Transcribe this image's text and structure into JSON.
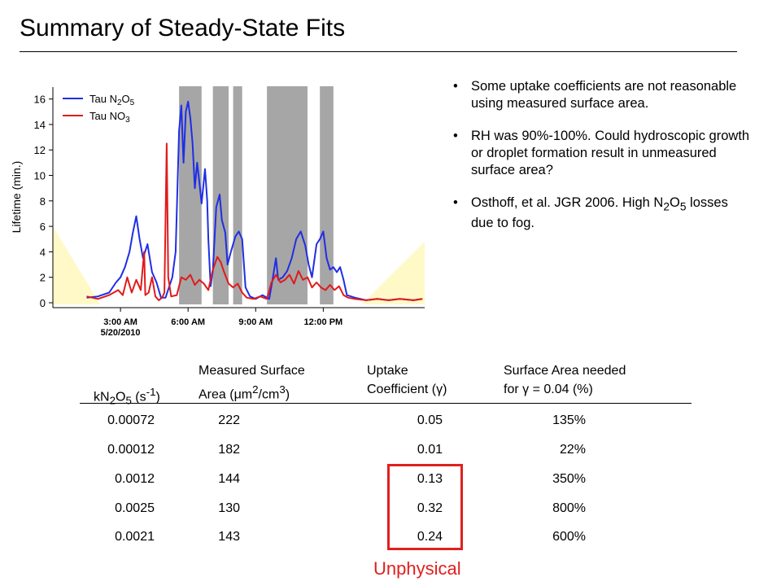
{
  "slide": {
    "title": "Summary of Steady-State Fits"
  },
  "bullets": [
    {
      "text": "Some uptake coefficients are not reasonable using measured surface area."
    },
    {
      "text": "RH was 90%-100%. Could hydroscopic growth or droplet formation result in unmeasured surface area?"
    },
    {
      "pre": "Osthoff, et al. JGR 2006. High N",
      "sub1": "2",
      "mid": "O",
      "sub2": "5",
      "post": " losses due to fog."
    }
  ],
  "chart_data": {
    "type": "line",
    "ylabel": "Lifetime (min.)",
    "ylim": [
      0,
      17
    ],
    "x_range_hours": [
      0,
      16.5
    ],
    "y_ticks": [
      "0",
      "2",
      "4",
      "6",
      "8",
      "10",
      "12",
      "14",
      "16"
    ],
    "x_ticks": [
      {
        "label": "3:00 AM",
        "sublabel": "5/20/2010",
        "hour": 3
      },
      {
        "label": "6:00 AM",
        "sublabel": "",
        "hour": 6
      },
      {
        "label": "9:00 AM",
        "sublabel": "",
        "hour": 9
      },
      {
        "label": "12:00 PM",
        "sublabel": "",
        "hour": 12
      }
    ],
    "shaded_periods_hours": [
      [
        5.6,
        6.6
      ],
      [
        7.1,
        7.8
      ],
      [
        8.0,
        8.4
      ],
      [
        9.5,
        11.3
      ],
      [
        11.85,
        12.45
      ]
    ],
    "daylight_regions": [
      {
        "hours": [
          0,
          2.1
        ],
        "peak": 6,
        "side": "left"
      },
      {
        "hours": [
          13.7,
          16.5
        ],
        "peak": 4.8,
        "side": "right"
      }
    ],
    "series": [
      {
        "name": "Tau N2O5",
        "color": "#1f2ee6",
        "points": [
          [
            1.5,
            0.4
          ],
          [
            2.0,
            0.5
          ],
          [
            2.5,
            0.8
          ],
          [
            2.8,
            1.6
          ],
          [
            3.0,
            2.0
          ],
          [
            3.2,
            2.8
          ],
          [
            3.4,
            4.0
          ],
          [
            3.55,
            5.5
          ],
          [
            3.7,
            6.8
          ],
          [
            3.85,
            5.0
          ],
          [
            4.0,
            3.5
          ],
          [
            4.2,
            4.6
          ],
          [
            4.4,
            2.4
          ],
          [
            4.6,
            1.6
          ],
          [
            4.8,
            0.4
          ],
          [
            5.0,
            0.4
          ],
          [
            5.3,
            2.0
          ],
          [
            5.45,
            4.0
          ],
          [
            5.6,
            13.5
          ],
          [
            5.7,
            15.5
          ],
          [
            5.8,
            11.0
          ],
          [
            5.9,
            15.0
          ],
          [
            6.0,
            15.8
          ],
          [
            6.1,
            14.5
          ],
          [
            6.2,
            12.5
          ],
          [
            6.3,
            9.0
          ],
          [
            6.4,
            11.0
          ],
          [
            6.5,
            9.5
          ],
          [
            6.6,
            7.8
          ],
          [
            6.75,
            10.5
          ],
          [
            6.85,
            8.0
          ],
          [
            6.9,
            5.0
          ],
          [
            7.0,
            1.3
          ],
          [
            7.1,
            2.5
          ],
          [
            7.25,
            7.5
          ],
          [
            7.4,
            8.5
          ],
          [
            7.5,
            6.5
          ],
          [
            7.65,
            5.5
          ],
          [
            7.75,
            3.0
          ],
          [
            7.9,
            4.0
          ],
          [
            8.1,
            5.2
          ],
          [
            8.25,
            5.6
          ],
          [
            8.4,
            5.0
          ],
          [
            8.55,
            1.2
          ],
          [
            8.75,
            0.5
          ],
          [
            9.0,
            0.3
          ],
          [
            9.3,
            0.6
          ],
          [
            9.6,
            0.3
          ],
          [
            9.75,
            1.8
          ],
          [
            9.9,
            3.5
          ],
          [
            10.0,
            1.8
          ],
          [
            10.2,
            2.0
          ],
          [
            10.4,
            2.5
          ],
          [
            10.6,
            3.5
          ],
          [
            10.8,
            5.0
          ],
          [
            11.0,
            5.6
          ],
          [
            11.2,
            4.5
          ],
          [
            11.35,
            3.0
          ],
          [
            11.5,
            2.0
          ],
          [
            11.7,
            4.6
          ],
          [
            11.85,
            5.0
          ],
          [
            12.0,
            5.6
          ],
          [
            12.15,
            3.5
          ],
          [
            12.3,
            2.6
          ],
          [
            12.45,
            2.8
          ],
          [
            12.6,
            2.4
          ],
          [
            12.75,
            2.8
          ],
          [
            12.9,
            1.8
          ],
          [
            13.05,
            0.6
          ],
          [
            13.4,
            0.4
          ],
          [
            13.9,
            0.2
          ],
          [
            14.4,
            0.3
          ],
          [
            14.9,
            0.2
          ],
          [
            15.4,
            0.3
          ],
          [
            16.0,
            0.2
          ],
          [
            16.4,
            0.3
          ]
        ]
      },
      {
        "name": "Tau NO3",
        "color": "#e01b1b",
        "points": [
          [
            1.5,
            0.5
          ],
          [
            2.0,
            0.3
          ],
          [
            2.5,
            0.6
          ],
          [
            2.9,
            1.0
          ],
          [
            3.1,
            0.6
          ],
          [
            3.3,
            2.0
          ],
          [
            3.5,
            0.8
          ],
          [
            3.7,
            1.8
          ],
          [
            3.9,
            1.0
          ],
          [
            4.05,
            4.0
          ],
          [
            4.1,
            0.6
          ],
          [
            4.25,
            0.8
          ],
          [
            4.4,
            2.0
          ],
          [
            4.55,
            0.5
          ],
          [
            4.7,
            0.2
          ],
          [
            4.85,
            0.4
          ],
          [
            4.95,
            0.8
          ],
          [
            5.05,
            12.5
          ],
          [
            5.12,
            2.0
          ],
          [
            5.25,
            0.5
          ],
          [
            5.5,
            0.6
          ],
          [
            5.7,
            2.0
          ],
          [
            5.9,
            1.8
          ],
          [
            6.1,
            2.2
          ],
          [
            6.3,
            1.4
          ],
          [
            6.5,
            1.8
          ],
          [
            6.7,
            1.5
          ],
          [
            6.9,
            1.0
          ],
          [
            7.1,
            2.6
          ],
          [
            7.3,
            3.6
          ],
          [
            7.45,
            3.2
          ],
          [
            7.6,
            2.4
          ],
          [
            7.8,
            1.5
          ],
          [
            8.0,
            1.2
          ],
          [
            8.2,
            1.5
          ],
          [
            8.4,
            0.8
          ],
          [
            8.6,
            0.4
          ],
          [
            8.9,
            0.3
          ],
          [
            9.2,
            0.5
          ],
          [
            9.5,
            0.3
          ],
          [
            9.7,
            1.6
          ],
          [
            9.9,
            2.2
          ],
          [
            10.1,
            1.6
          ],
          [
            10.3,
            1.8
          ],
          [
            10.5,
            2.2
          ],
          [
            10.7,
            1.5
          ],
          [
            10.9,
            2.5
          ],
          [
            11.1,
            1.8
          ],
          [
            11.3,
            2.0
          ],
          [
            11.5,
            1.2
          ],
          [
            11.7,
            1.6
          ],
          [
            11.9,
            1.2
          ],
          [
            12.1,
            1.0
          ],
          [
            12.3,
            1.4
          ],
          [
            12.5,
            1.0
          ],
          [
            12.7,
            1.3
          ],
          [
            12.9,
            0.6
          ],
          [
            13.1,
            0.4
          ],
          [
            13.4,
            0.3
          ],
          [
            13.9,
            0.2
          ],
          [
            14.4,
            0.3
          ],
          [
            14.9,
            0.2
          ],
          [
            15.4,
            0.3
          ],
          [
            16.0,
            0.2
          ],
          [
            16.4,
            0.3
          ]
        ]
      }
    ]
  },
  "legend": {
    "n2o5": {
      "pre": "Tau N",
      "s1": "2",
      "mid": "O",
      "s2": "5"
    },
    "no3": {
      "pre": "Tau NO",
      "s1": "3"
    }
  },
  "table": {
    "headers": {
      "col1": {
        "pre": "kN",
        "s1": "2",
        "mid": "O",
        "s2": "5",
        "mid2": " (s",
        "sup": "-1",
        "post": ")"
      },
      "col2": {
        "line1": "Measured Surface",
        "pre": "Area (",
        "mu": "μ",
        "unit": "m",
        "sup1": "2",
        "mid": "/cm",
        "sup2": "3",
        "post": ")"
      },
      "col3": {
        "line1": "Uptake",
        "pre": "Coefficient (",
        "gamma": "γ",
        "post": ")"
      },
      "col4": {
        "line1": "Surface Area needed",
        "pre": "for ",
        "gamma": "γ",
        "post": " = 0.04 (%)"
      }
    },
    "rows": [
      [
        "0.00072",
        "222",
        "0.05",
        "135%"
      ],
      [
        "0.00012",
        "182",
        "0.01",
        "22%"
      ],
      [
        "0.0012",
        "144",
        "0.13",
        "350%"
      ],
      [
        "0.0025",
        "130",
        "0.32",
        "800%"
      ],
      [
        "0.0021",
        "143",
        "0.24",
        "600%"
      ]
    ],
    "highlight_label": "Unphysical",
    "highlight_color": "#e0201e"
  }
}
